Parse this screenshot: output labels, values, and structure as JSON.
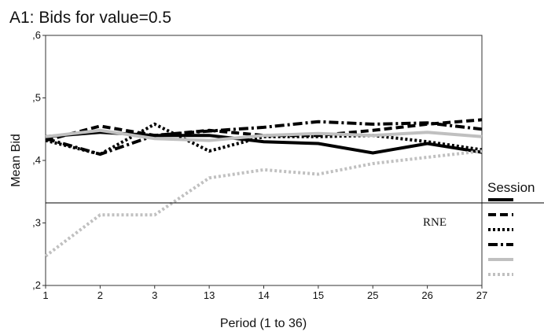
{
  "chart_data": {
    "type": "line",
    "title": "A1: Bids for value=0.5",
    "xlabel": "Period (1 to 36)",
    "ylabel": "Mean Bid",
    "categories": [
      "1",
      "2",
      "3",
      "13",
      "14",
      "15",
      "25",
      "26",
      "27"
    ],
    "ylim": [
      0.2,
      0.6
    ],
    "yticks": [
      {
        "value": 0.2,
        "label": ",2"
      },
      {
        "value": 0.3,
        "label": ",3"
      },
      {
        "value": 0.4,
        "label": ",4"
      },
      {
        "value": 0.5,
        "label": ",5"
      },
      {
        "value": 0.6,
        "label": ",6"
      }
    ],
    "reference_line": {
      "value": 0.332,
      "label": "RNE"
    },
    "legend": {
      "title": "Session",
      "position": "right"
    },
    "series": [
      {
        "style": "solid",
        "color": "#000000",
        "values": [
          0.438,
          0.445,
          0.44,
          0.44,
          0.43,
          0.427,
          0.412,
          0.427,
          0.413
        ]
      },
      {
        "style": "dashed",
        "color": "#000000",
        "values": [
          0.432,
          0.455,
          0.44,
          0.448,
          0.44,
          0.44,
          0.448,
          0.458,
          0.465
        ]
      },
      {
        "style": "dotted",
        "color": "#000000",
        "values": [
          0.432,
          0.41,
          0.458,
          0.415,
          0.438,
          0.438,
          0.44,
          0.43,
          0.417
        ]
      },
      {
        "style": "dashdot",
        "color": "#000000",
        "values": [
          0.435,
          0.41,
          0.44,
          0.447,
          0.453,
          0.462,
          0.458,
          0.46,
          0.45
        ]
      },
      {
        "style": "solid",
        "color": "#c0c0c0",
        "values": [
          0.438,
          0.448,
          0.435,
          0.432,
          0.44,
          0.443,
          0.44,
          0.445,
          0.438
        ]
      },
      {
        "style": "dotted",
        "color": "#c0c0c0",
        "values": [
          0.247,
          0.313,
          0.313,
          0.372,
          0.385,
          0.378,
          0.395,
          0.405,
          0.415
        ]
      }
    ]
  }
}
